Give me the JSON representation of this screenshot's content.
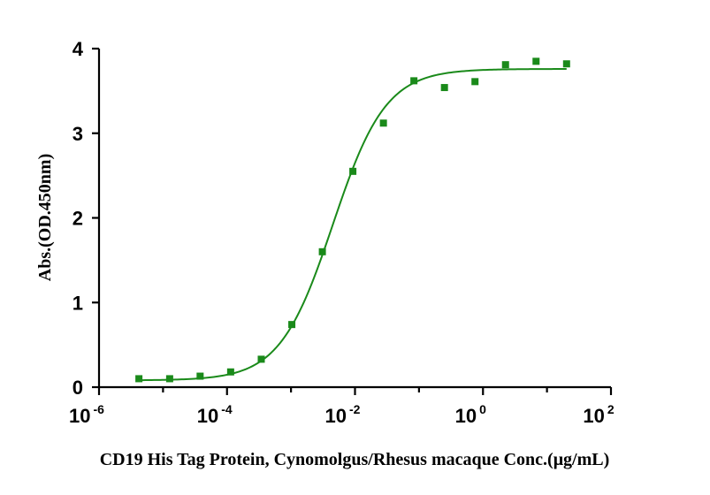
{
  "chart_data": {
    "type": "scatter",
    "xlabel": "CD19 His Tag Protein, Cynomolgus/Rhesus macaque Conc.(μg/mL)",
    "ylabel": "Abs.(OD.450nm)",
    "x_scale": "log",
    "xlim": [
      1e-06,
      100
    ],
    "ylim": [
      0,
      4
    ],
    "x_ticks": [
      {
        "base": "10",
        "exp": "-6",
        "value": 1e-06
      },
      {
        "base": "10",
        "exp": "-4",
        "value": 0.0001
      },
      {
        "base": "10",
        "exp": "-2",
        "value": 0.01
      },
      {
        "base": "10",
        "exp": "0",
        "value": 1
      },
      {
        "base": "10",
        "exp": "2",
        "value": 100
      }
    ],
    "y_ticks": [
      "0",
      "1",
      "2",
      "3",
      "4"
    ],
    "grid": false,
    "marker_color": "#1a8a1a",
    "curve_color": "#1a8a1a",
    "series": [
      {
        "x": [
          4.2e-06,
          1.27e-05,
          3.8e-05,
          0.000114,
          0.000343,
          0.00103,
          0.00309,
          0.00926,
          0.0278,
          0.0833,
          0.25,
          0.75,
          2.25,
          6.75,
          20.25
        ],
        "y": [
          0.1,
          0.1,
          0.13,
          0.18,
          0.33,
          0.74,
          1.6,
          2.55,
          3.12,
          3.62,
          3.54,
          3.61,
          3.81,
          3.85,
          3.82
        ]
      }
    ],
    "fit": {
      "model": "4PL",
      "bottom": 0.08,
      "top": 3.76,
      "ec50": 0.0045,
      "hill": 1.05
    }
  }
}
